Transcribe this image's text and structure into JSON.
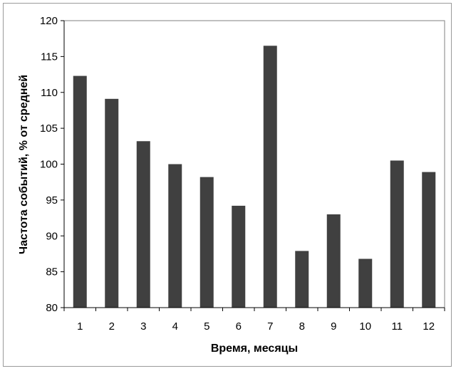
{
  "chart_data": {
    "type": "bar",
    "title": "",
    "xlabel": "Время, месяцы",
    "ylabel": "Частота событий, % от средней",
    "categories": [
      "1",
      "2",
      "3",
      "4",
      "5",
      "6",
      "7",
      "8",
      "9",
      "10",
      "11",
      "12"
    ],
    "values": [
      112.3,
      109.1,
      103.2,
      100.0,
      98.2,
      94.2,
      116.5,
      87.9,
      93.0,
      86.8,
      100.5,
      98.9
    ],
    "ylim": [
      80,
      120
    ],
    "yticks": [
      "80",
      "85",
      "90",
      "95",
      "100",
      "105",
      "110",
      "115",
      "120"
    ],
    "grid": false,
    "legend": "none",
    "bar_color": "#404040"
  }
}
